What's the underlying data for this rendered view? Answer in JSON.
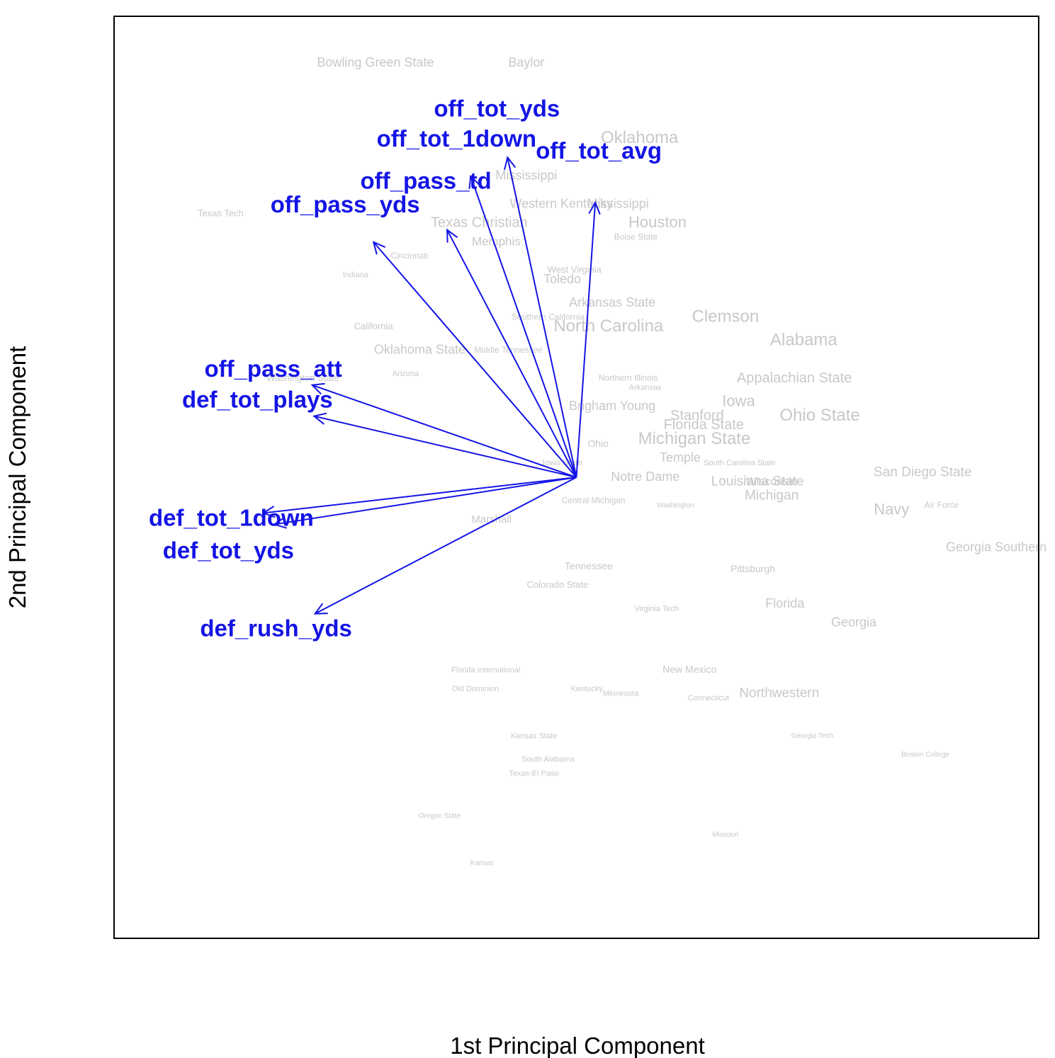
{
  "chart_data": {
    "type": "scatter",
    "subtype": "pca-biplot",
    "title": "",
    "xlabel": "1st Principal Component",
    "ylabel": "2nd Principal Component",
    "xlim": [
      -4.9,
      4.9
    ],
    "ylim": [
      -4.9,
      4.9
    ],
    "grid": false,
    "colors": {
      "points": "#c8c8c8",
      "vectors": "#1414e6",
      "frame": "#000000"
    },
    "teams": [
      {
        "name": "Bowling Green State",
        "x": -2.13,
        "y": 4.4,
        "size": 18
      },
      {
        "name": "Baylor",
        "x": -0.53,
        "y": 4.4,
        "size": 18
      },
      {
        "name": "Oklahoma",
        "x": 0.67,
        "y": 3.6,
        "size": 24
      },
      {
        "name": "Mississippi",
        "x": -0.53,
        "y": 3.2,
        "size": 18
      },
      {
        "name": "Western Kentucky",
        "x": -0.16,
        "y": 2.9,
        "size": 18
      },
      {
        "name": "Mississippi",
        "x": 0.44,
        "y": 2.9,
        "size": 18
      },
      {
        "name": "Texas Tech",
        "x": -3.77,
        "y": 2.8,
        "size": 13
      },
      {
        "name": "Texas Christian",
        "x": -1.03,
        "y": 2.7,
        "size": 20
      },
      {
        "name": "Houston",
        "x": 0.86,
        "y": 2.7,
        "size": 22
      },
      {
        "name": "Boise State",
        "x": 0.63,
        "y": 2.55,
        "size": 12
      },
      {
        "name": "Memphis",
        "x": -0.85,
        "y": 2.5,
        "size": 17
      },
      {
        "name": "Cincinnati",
        "x": -1.77,
        "y": 2.35,
        "size": 12
      },
      {
        "name": "Toledo",
        "x": -0.15,
        "y": 2.1,
        "size": 18
      },
      {
        "name": "West Virginia",
        "x": -0.02,
        "y": 2.2,
        "size": 13
      },
      {
        "name": "Indiana",
        "x": -2.34,
        "y": 2.15,
        "size": 11
      },
      {
        "name": "Arkansas State",
        "x": 0.38,
        "y": 1.85,
        "size": 18
      },
      {
        "name": "Clemson",
        "x": 1.58,
        "y": 1.7,
        "size": 24
      },
      {
        "name": "North Carolina",
        "x": 0.34,
        "y": 1.6,
        "size": 24
      },
      {
        "name": "California",
        "x": -2.15,
        "y": 1.6,
        "size": 13
      },
      {
        "name": "Southern California",
        "x": -0.3,
        "y": 1.7,
        "size": 12
      },
      {
        "name": "Alabama",
        "x": 2.41,
        "y": 1.45,
        "size": 24
      },
      {
        "name": "Oklahoma State",
        "x": -1.66,
        "y": 1.35,
        "size": 18
      },
      {
        "name": "Middle Tennessee",
        "x": -0.72,
        "y": 1.35,
        "size": 12
      },
      {
        "name": "Washington State",
        "x": -2.9,
        "y": 1.05,
        "size": 13
      },
      {
        "name": "Arizona",
        "x": -1.81,
        "y": 1.1,
        "size": 11
      },
      {
        "name": "Appalachian State",
        "x": 2.31,
        "y": 1.05,
        "size": 20
      },
      {
        "name": "Northern Illinois",
        "x": 0.55,
        "y": 1.05,
        "size": 12
      },
      {
        "name": "Arkansas",
        "x": 0.73,
        "y": 0.95,
        "size": 11
      },
      {
        "name": "Iowa",
        "x": 1.72,
        "y": 0.8,
        "size": 22
      },
      {
        "name": "Brigham Young",
        "x": 0.38,
        "y": 0.75,
        "size": 18
      },
      {
        "name": "Ohio State",
        "x": 2.58,
        "y": 0.65,
        "size": 24
      },
      {
        "name": "Stanford",
        "x": 1.28,
        "y": 0.65,
        "size": 20
      },
      {
        "name": "Florida State",
        "x": 1.35,
        "y": 0.55,
        "size": 20
      },
      {
        "name": "Michigan State",
        "x": 1.25,
        "y": 0.4,
        "size": 24
      },
      {
        "name": "Ohio",
        "x": 0.23,
        "y": 0.35,
        "size": 14
      },
      {
        "name": "Temple",
        "x": 1.1,
        "y": 0.2,
        "size": 18
      },
      {
        "name": "South Carolina State",
        "x": 1.73,
        "y": 0.15,
        "size": 11
      },
      {
        "name": "Iowa State",
        "x": -0.15,
        "y": 0.15,
        "size": 12
      },
      {
        "name": "San Diego State",
        "x": 3.67,
        "y": 0.05,
        "size": 19
      },
      {
        "name": "Notre Dame",
        "x": 0.73,
        "y": 0.0,
        "size": 18
      },
      {
        "name": "Louisiana State",
        "x": 1.92,
        "y": -0.05,
        "size": 19
      },
      {
        "name": "Wisconsin",
        "x": 2.07,
        "y": -0.05,
        "size": 16
      },
      {
        "name": "Michigan",
        "x": 2.07,
        "y": -0.2,
        "size": 19
      },
      {
        "name": "Central Michigan",
        "x": 0.18,
        "y": -0.25,
        "size": 12
      },
      {
        "name": "Washington",
        "x": 1.05,
        "y": -0.3,
        "size": 10
      },
      {
        "name": "Navy",
        "x": 3.34,
        "y": -0.35,
        "size": 22
      },
      {
        "name": "Air Force",
        "x": 3.87,
        "y": -0.3,
        "size": 12
      },
      {
        "name": "Marshall",
        "x": -0.9,
        "y": -0.45,
        "size": 15
      },
      {
        "name": "Georgia Southern",
        "x": 4.45,
        "y": -0.75,
        "size": 18
      },
      {
        "name": "Tennessee",
        "x": 0.13,
        "y": -0.95,
        "size": 14
      },
      {
        "name": "Pittsburgh",
        "x": 1.87,
        "y": -0.98,
        "size": 14
      },
      {
        "name": "Colorado State",
        "x": -0.2,
        "y": -1.15,
        "size": 13
      },
      {
        "name": "Florida",
        "x": 2.21,
        "y": -1.35,
        "size": 18
      },
      {
        "name": "Georgia",
        "x": 2.94,
        "y": -1.55,
        "size": 18
      },
      {
        "name": "Virginia Tech",
        "x": 0.85,
        "y": -1.4,
        "size": 11
      },
      {
        "name": "New Mexico",
        "x": 1.2,
        "y": -2.05,
        "size": 14
      },
      {
        "name": "Northwestern",
        "x": 2.15,
        "y": -2.3,
        "size": 19
      },
      {
        "name": "Kentucky",
        "x": 0.11,
        "y": -2.25,
        "size": 11
      },
      {
        "name": "Minnesota",
        "x": 0.47,
        "y": -2.3,
        "size": 11
      },
      {
        "name": "Connecticut",
        "x": 1.4,
        "y": -2.35,
        "size": 11
      },
      {
        "name": "Florida International",
        "x": -0.96,
        "y": -2.05,
        "size": 11
      },
      {
        "name": "Old Dominion",
        "x": -1.07,
        "y": -2.25,
        "size": 11
      },
      {
        "name": "Kansas State",
        "x": -0.45,
        "y": -2.75,
        "size": 11
      },
      {
        "name": "South Alabama",
        "x": -0.3,
        "y": -3.0,
        "size": 11
      },
      {
        "name": "Texas-El Paso",
        "x": -0.45,
        "y": -3.15,
        "size": 11
      },
      {
        "name": "Georgia Tech",
        "x": 2.5,
        "y": -2.75,
        "size": 10
      },
      {
        "name": "Boston College",
        "x": 3.7,
        "y": -2.95,
        "size": 10
      },
      {
        "name": "Oregon State",
        "x": -1.45,
        "y": -3.6,
        "size": 10
      },
      {
        "name": "Missouri",
        "x": 1.58,
        "y": -3.8,
        "size": 10
      },
      {
        "name": "Kansas",
        "x": -1.0,
        "y": -4.1,
        "size": 10
      }
    ],
    "vectors": [
      {
        "name": "off_tot_yds",
        "x": -0.73,
        "y": 3.4
      },
      {
        "name": "off_tot_1down",
        "x": -1.12,
        "y": 3.2
      },
      {
        "name": "off_tot_avg",
        "x": 0.2,
        "y": 2.92
      },
      {
        "name": "off_pass_td",
        "x": -1.37,
        "y": 2.63
      },
      {
        "name": "off_pass_yds",
        "x": -2.15,
        "y": 2.5
      },
      {
        "name": "off_pass_att",
        "x": -2.8,
        "y": 0.98
      },
      {
        "name": "def_tot_plays",
        "x": -2.78,
        "y": 0.65
      },
      {
        "name": "def_tot_1down",
        "x": -3.32,
        "y": -0.38
      },
      {
        "name": "def_tot_yds",
        "x": -3.2,
        "y": -0.5
      },
      {
        "name": "def_rush_yds",
        "x": -2.77,
        "y": -1.45
      }
    ]
  }
}
